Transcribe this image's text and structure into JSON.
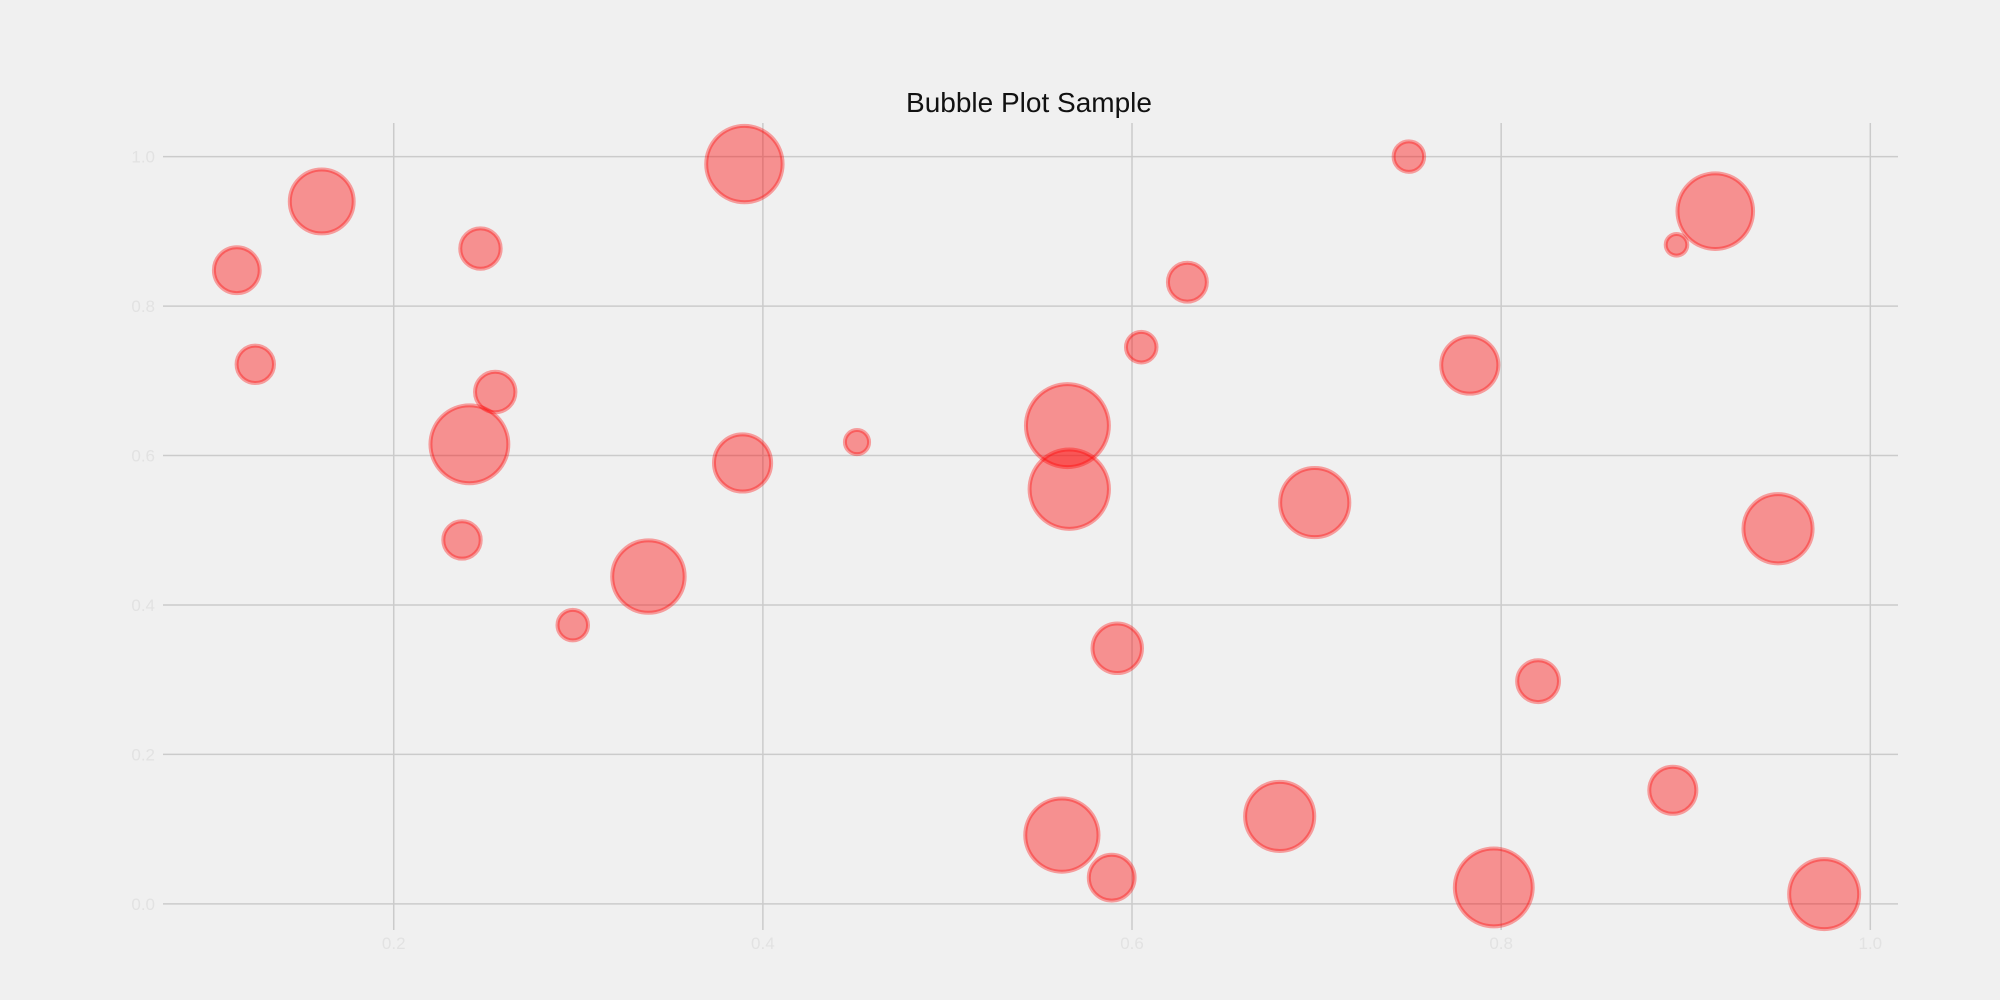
{
  "chart_data": {
    "type": "scatter",
    "title": "Bubble Plot Sample",
    "xlabel": "",
    "ylabel": "",
    "xlim": [
      0.075,
      1.015
    ],
    "ylim": [
      -0.035,
      1.045
    ],
    "x_ticks": [
      0.2,
      0.4,
      0.6,
      0.8,
      1.0
    ],
    "x_tick_labels": [
      "0.2",
      "0.4",
      "0.6",
      "0.8",
      "1.0"
    ],
    "y_ticks": [
      0.0,
      0.2,
      0.4,
      0.6,
      0.8,
      1.0
    ],
    "y_tick_labels": [
      "0.0",
      "0.2",
      "0.4",
      "0.6",
      "0.8",
      "1.0"
    ],
    "grid": true,
    "legend": "none",
    "colors": {
      "background": "#f0f0f0",
      "bubble_fill": "#ff0000",
      "bubble_edge": "#ff0000",
      "grid": "#cbcbcb",
      "title": "#111111",
      "tick_labels": "#e2e2e2"
    },
    "bubble_fill_opacity": 0.4,
    "bubble_edge_opacity": 0.35,
    "points": [
      {
        "x": 0.115,
        "y": 0.848,
        "size": 18
      },
      {
        "x": 0.125,
        "y": 0.722,
        "size": 12
      },
      {
        "x": 0.161,
        "y": 0.94,
        "size": 35
      },
      {
        "x": 0.241,
        "y": 0.615,
        "size": 52
      },
      {
        "x": 0.237,
        "y": 0.487,
        "size": 12
      },
      {
        "x": 0.247,
        "y": 0.877,
        "size": 14
      },
      {
        "x": 0.255,
        "y": 0.685,
        "size": 14
      },
      {
        "x": 0.297,
        "y": 0.373,
        "size": 8
      },
      {
        "x": 0.338,
        "y": 0.438,
        "size": 45
      },
      {
        "x": 0.39,
        "y": 0.99,
        "size": 50
      },
      {
        "x": 0.389,
        "y": 0.59,
        "size": 28
      },
      {
        "x": 0.451,
        "y": 0.618,
        "size": 5
      },
      {
        "x": 0.562,
        "y": 0.092,
        "size": 46
      },
      {
        "x": 0.565,
        "y": 0.64,
        "size": 59
      },
      {
        "x": 0.566,
        "y": 0.555,
        "size": 54
      },
      {
        "x": 0.589,
        "y": 0.035,
        "size": 18
      },
      {
        "x": 0.592,
        "y": 0.342,
        "size": 21
      },
      {
        "x": 0.605,
        "y": 0.745,
        "size": 8
      },
      {
        "x": 0.63,
        "y": 0.832,
        "size": 13
      },
      {
        "x": 0.68,
        "y": 0.117,
        "size": 41
      },
      {
        "x": 0.699,
        "y": 0.537,
        "size": 41
      },
      {
        "x": 0.75,
        "y": 1.0,
        "size": 8
      },
      {
        "x": 0.783,
        "y": 0.721,
        "size": 28
      },
      {
        "x": 0.796,
        "y": 0.022,
        "size": 52
      },
      {
        "x": 0.82,
        "y": 0.298,
        "size": 15
      },
      {
        "x": 0.893,
        "y": 0.152,
        "size": 19
      },
      {
        "x": 0.895,
        "y": 0.882,
        "size": 4
      },
      {
        "x": 0.916,
        "y": 0.927,
        "size": 49
      },
      {
        "x": 0.95,
        "y": 0.502,
        "size": 41
      },
      {
        "x": 0.975,
        "y": 0.013,
        "size": 42
      }
    ]
  }
}
